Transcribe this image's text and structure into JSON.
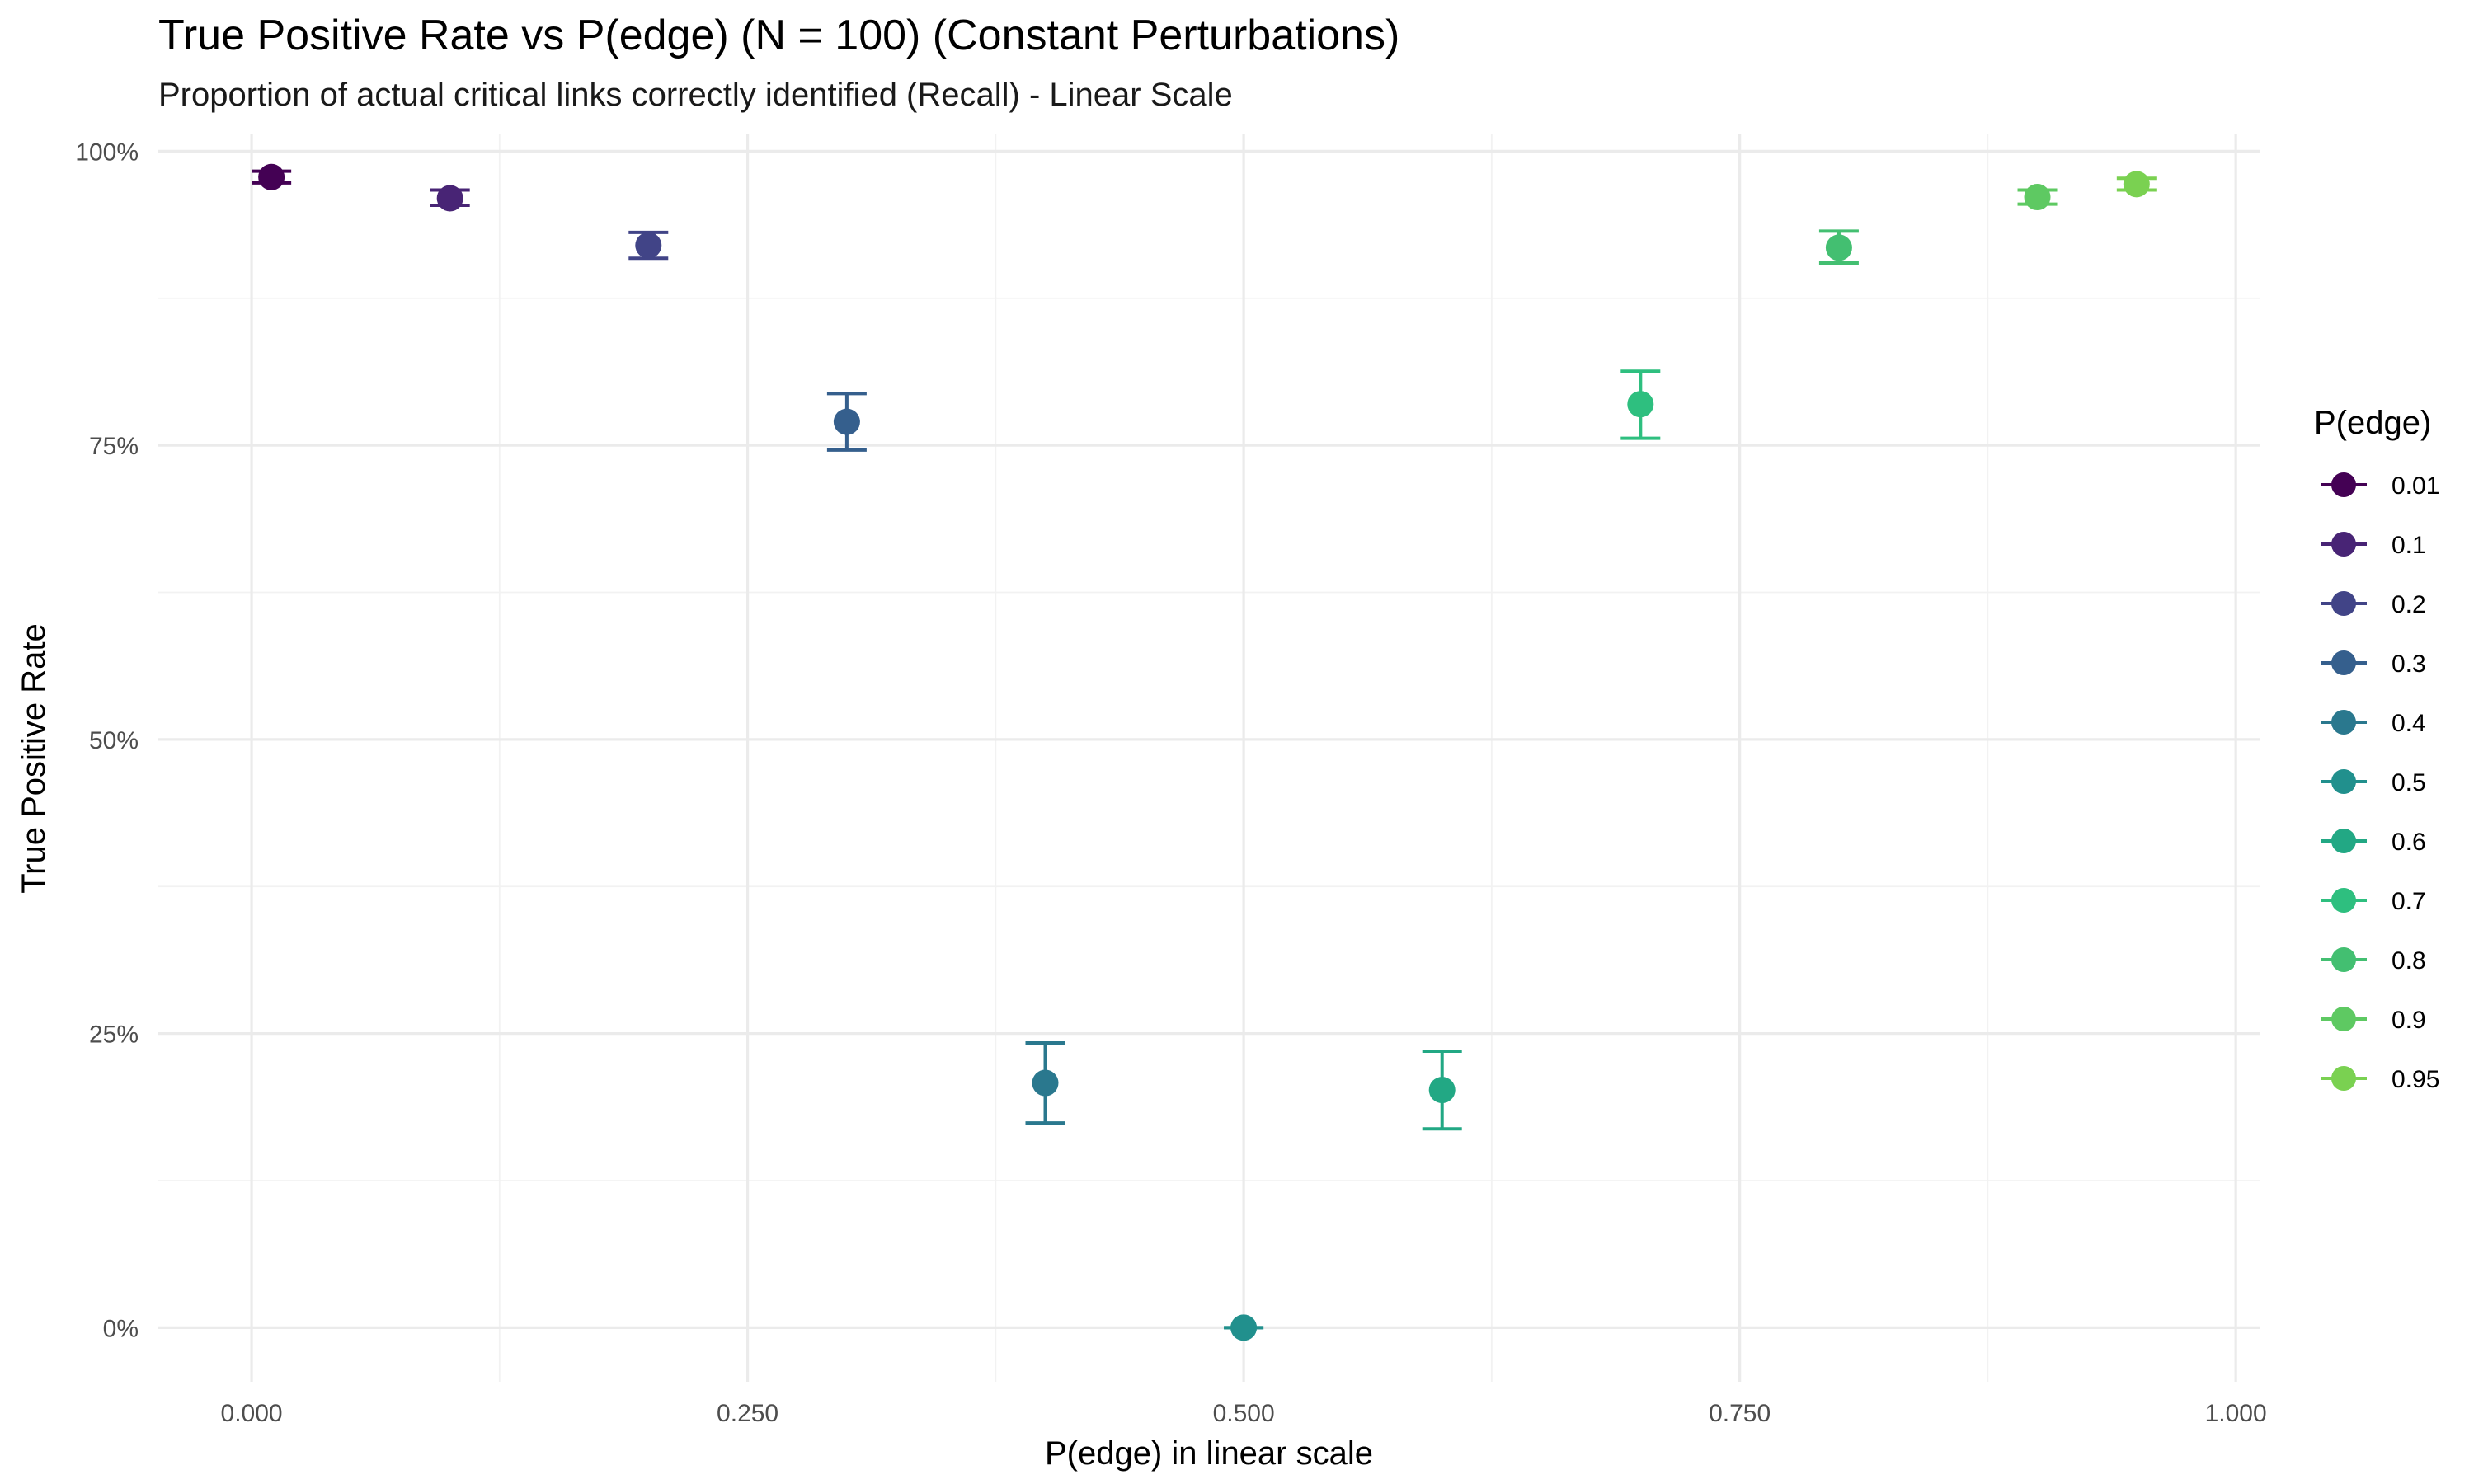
{
  "chart_data": {
    "type": "scatter",
    "title": "True Positive Rate vs P(edge) (N = 100) (Constant Perturbations)",
    "subtitle": "Proportion of actual critical links correctly identified (Recall) - Linear Scale",
    "xlabel": "P(edge) in linear scale",
    "ylabel": "True Positive Rate",
    "xlim": [
      -0.047,
      1.012
    ],
    "ylim": [
      -0.046,
      1.015
    ],
    "x_ticks": [
      0,
      0.25,
      0.5,
      0.75,
      1.0
    ],
    "x_tick_labels": [
      "0.000",
      "0.250",
      "0.500",
      "0.750",
      "1.000"
    ],
    "y_ticks": [
      0,
      0.25,
      0.5,
      0.75,
      1.0
    ],
    "y_tick_labels": [
      "0%",
      "25%",
      "50%",
      "75%",
      "100%"
    ],
    "grid": true,
    "legend": {
      "title": "P(edge)",
      "placement": "right"
    },
    "series": [
      {
        "name": "0.01",
        "x": 0.01,
        "y": 0.978,
        "ymin": 0.973,
        "ymax": 0.983,
        "color": "#440154"
      },
      {
        "name": "0.1",
        "x": 0.1,
        "y": 0.96,
        "ymin": 0.954,
        "ymax": 0.967,
        "color": "#482475"
      },
      {
        "name": "0.2",
        "x": 0.2,
        "y": 0.92,
        "ymin": 0.909,
        "ymax": 0.931,
        "color": "#414487"
      },
      {
        "name": "0.3",
        "x": 0.3,
        "y": 0.77,
        "ymin": 0.746,
        "ymax": 0.794,
        "color": "#355f8d"
      },
      {
        "name": "0.4",
        "x": 0.4,
        "y": 0.208,
        "ymin": 0.174,
        "ymax": 0.242,
        "color": "#2a788e"
      },
      {
        "name": "0.5",
        "x": 0.5,
        "y": 0.0,
        "ymin": 0.0,
        "ymax": 0.0,
        "color": "#21908d"
      },
      {
        "name": "0.6",
        "x": 0.6,
        "y": 0.202,
        "ymin": 0.169,
        "ymax": 0.235,
        "color": "#22a884"
      },
      {
        "name": "0.7",
        "x": 0.7,
        "y": 0.785,
        "ymin": 0.756,
        "ymax": 0.813,
        "color": "#2ebf7f"
      },
      {
        "name": "0.8",
        "x": 0.8,
        "y": 0.918,
        "ymin": 0.905,
        "ymax": 0.932,
        "color": "#43bf71"
      },
      {
        "name": "0.9",
        "x": 0.9,
        "y": 0.961,
        "ymin": 0.955,
        "ymax": 0.967,
        "color": "#5ec962"
      },
      {
        "name": "0.95",
        "x": 0.95,
        "y": 0.972,
        "ymin": 0.967,
        "ymax": 0.977,
        "color": "#7ad151"
      }
    ]
  }
}
